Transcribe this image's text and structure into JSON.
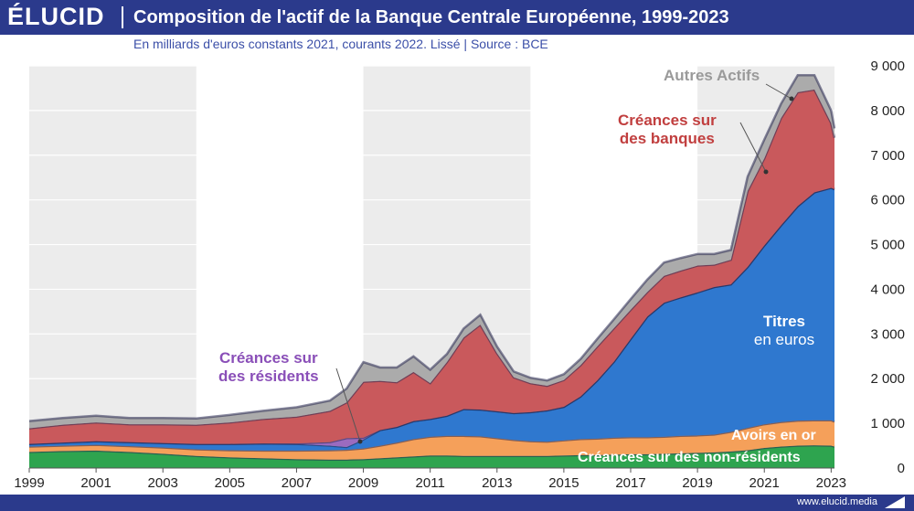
{
  "header": {
    "brand": "ÉLUCID",
    "title": "Composition de l'actif de la Banque Centrale Européenne, 1999-2023"
  },
  "subtitle": "En milliards d'euros constants 2021, courants 2022. Lissé  |  Source : BCE",
  "footer": {
    "url": "www.elucid.media",
    "logo_icon": "elucid-triangle-icon"
  },
  "colors": {
    "non_residents": "#2ea44f",
    "gold": "#f5a05a",
    "titres": "#2f78cf",
    "residents": "#9b6bbf",
    "banques": "#c9595c",
    "autres": "#ababab",
    "band": "#ececec"
  },
  "labels": {
    "autres": "Autres Actifs",
    "banques_1": "Créances sur",
    "banques_2": "des banques",
    "residents_1": "Créances sur",
    "residents_2": "des résidents",
    "titres_1": "Titres",
    "titres_2": "en euros",
    "gold": "Avoirs en or",
    "non_residents": "Créances sur des non-résidents"
  },
  "chart_data": {
    "type": "area",
    "stacked": true,
    "title": "Composition de l'actif de la Banque Centrale Européenne, 1999-2023",
    "subtitle": "En milliards d'euros constants 2021, courants 2022. Lissé  |  Source : BCE",
    "x_ticks": [
      "1999",
      "2001",
      "2003",
      "2005",
      "2007",
      "2009",
      "2011",
      "2013",
      "2015",
      "2017",
      "2019",
      "2021",
      "2023"
    ],
    "y_ticks": [
      "0",
      "1 000",
      "2 000",
      "3 000",
      "4 000",
      "5 000",
      "6 000",
      "7 000",
      "8 000",
      "9 000"
    ],
    "xlim": [
      1999,
      2023.1
    ],
    "ylim": [
      0,
      9000
    ],
    "y_axis_position": "right",
    "grid": true,
    "x": [
      1999,
      2000,
      2001,
      2002,
      2003,
      2004,
      2005,
      2006,
      2007,
      2008,
      2008.5,
      2009,
      2009.5,
      2010,
      2010.5,
      2011,
      2011.5,
      2012,
      2012.5,
      2013,
      2013.5,
      2014,
      2014.5,
      2015,
      2015.5,
      2016,
      2016.5,
      2017,
      2017.5,
      2018,
      2018.5,
      2019,
      2019.5,
      2020,
      2020.5,
      2021,
      2021.5,
      2022,
      2022.5,
      2023,
      2023.1
    ],
    "series": [
      {
        "name": "Créances sur des non-résidents",
        "color": "#2ea44f",
        "values": [
          360,
          380,
          390,
          360,
          320,
          270,
          240,
          220,
          200,
          190,
          190,
          200,
          220,
          240,
          260,
          280,
          280,
          270,
          270,
          270,
          270,
          270,
          270,
          280,
          290,
          290,
          300,
          310,
          310,
          320,
          330,
          340,
          350,
          370,
          400,
          450,
          480,
          500,
          510,
          500,
          480
        ]
      },
      {
        "name": "Avoirs en or",
        "color": "#f5a05a",
        "values": [
          120,
          120,
          130,
          130,
          140,
          150,
          160,
          170,
          190,
          210,
          220,
          240,
          280,
          330,
          390,
          420,
          440,
          450,
          440,
          400,
          360,
          330,
          320,
          340,
          360,
          370,
          380,
          380,
          380,
          380,
          390,
          390,
          400,
          440,
          500,
          530,
          550,
          560,
          560,
          570,
          560
        ]
      },
      {
        "name": "Titres en euros",
        "color": "#2f78cf",
        "values": [
          60,
          70,
          80,
          90,
          100,
          120,
          140,
          160,
          150,
          100,
          60,
          200,
          350,
          350,
          400,
          400,
          450,
          600,
          600,
          600,
          600,
          650,
          700,
          750,
          950,
          1300,
          1700,
          2200,
          2700,
          3000,
          3100,
          3200,
          3300,
          3300,
          3600,
          4000,
          4400,
          4800,
          5100,
          5200,
          5200
        ]
      },
      {
        "name": "Créances sur des résidents",
        "color": "#9b6bbf",
        "values": [
          0,
          0,
          0,
          0,
          0,
          0,
          0,
          0,
          10,
          80,
          200,
          40,
          0,
          0,
          0,
          0,
          0,
          0,
          0,
          0,
          0,
          0,
          0,
          0,
          0,
          0,
          0,
          0,
          0,
          0,
          0,
          0,
          0,
          0,
          0,
          0,
          0,
          0,
          0,
          0,
          0
        ]
      },
      {
        "name": "Créances sur des banques",
        "color": "#c9595c",
        "values": [
          350,
          400,
          420,
          400,
          420,
          430,
          480,
          550,
          600,
          700,
          800,
          1250,
          1100,
          1000,
          1100,
          800,
          1200,
          1600,
          1900,
          1300,
          800,
          650,
          550,
          600,
          700,
          760,
          750,
          650,
          550,
          600,
          600,
          600,
          500,
          550,
          1700,
          1950,
          2400,
          2550,
          2300,
          1450,
          1150
        ]
      },
      {
        "name": "Autres Actifs",
        "color": "#ababab",
        "values": [
          160,
          150,
          150,
          140,
          140,
          140,
          170,
          180,
          210,
          230,
          310,
          440,
          300,
          330,
          350,
          300,
          180,
          200,
          220,
          150,
          130,
          120,
          120,
          130,
          140,
          170,
          200,
          240,
          280,
          300,
          280,
          260,
          240,
          220,
          320,
          420,
          320,
          380,
          320,
          280,
          210
        ]
      }
    ]
  }
}
